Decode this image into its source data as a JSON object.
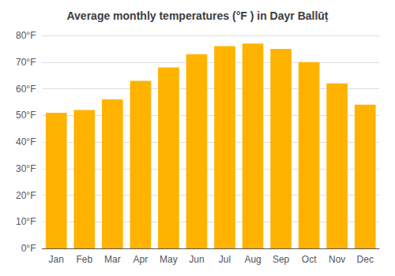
{
  "chart_data": {
    "type": "bar",
    "title": "Average monthly temperatures (°F ) in Dayr Ballūṭ",
    "categories": [
      "Jan",
      "Feb",
      "Mar",
      "Apr",
      "May",
      "Jun",
      "Jul",
      "Aug",
      "Sep",
      "Oct",
      "Nov",
      "Dec"
    ],
    "values": [
      51,
      52,
      56,
      63,
      68,
      73,
      76,
      77,
      75,
      70,
      62,
      54
    ],
    "color": "#FFB300",
    "ylim": [
      0,
      80
    ],
    "yticks": [
      {
        "value": 0,
        "label": "0°F"
      },
      {
        "value": 10,
        "label": "10°F"
      },
      {
        "value": 20,
        "label": "20°F"
      },
      {
        "value": 30,
        "label": "30°F"
      },
      {
        "value": 40,
        "label": "40°F"
      },
      {
        "value": 50,
        "label": "50°F"
      },
      {
        "value": 60,
        "label": "60°F"
      },
      {
        "value": 70,
        "label": "70°F"
      },
      {
        "value": 80,
        "label": "80°F"
      }
    ],
    "grid": true
  }
}
